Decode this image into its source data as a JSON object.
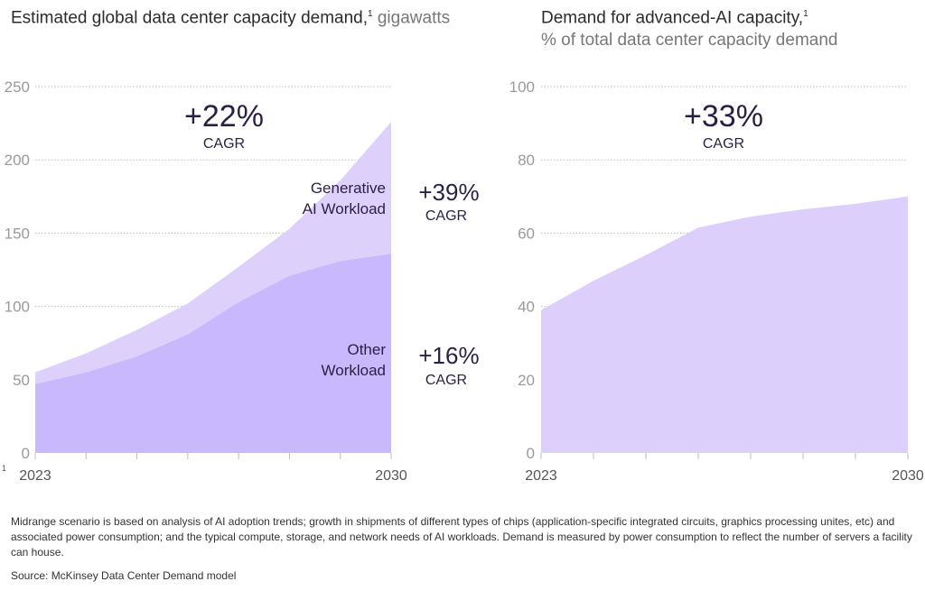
{
  "chart_data": [
    {
      "type": "area",
      "title": "Estimated global data center capacity demand,",
      "title_sup": "1",
      "unit": "gigawatts",
      "x": [
        2023,
        2024,
        2025,
        2026,
        2027,
        2028,
        2029,
        2030
      ],
      "x_tick_labels": [
        "2023",
        "2030"
      ],
      "ylim": [
        0,
        250
      ],
      "y_ticks": [
        0,
        50,
        100,
        150,
        200,
        250
      ],
      "grid": true,
      "stacked": true,
      "series": [
        {
          "name": "Other Workload",
          "label_lines": [
            "Other",
            "Workload"
          ],
          "values": [
            47,
            55,
            66,
            81,
            103,
            121,
            131,
            136
          ],
          "color": "#c9b8fb",
          "cagr": "+16%"
        },
        {
          "name": "Generative AI Workload",
          "label_lines": [
            "Generative",
            "AI Workload"
          ],
          "values": [
            8,
            13,
            18,
            21,
            24,
            32,
            55,
            90
          ],
          "color": "#ddd1fc",
          "cagr": "+39%"
        }
      ],
      "total_cagr": "+22%",
      "cagr_label": "CAGR",
      "footnote_marker": "1"
    },
    {
      "type": "area",
      "title": "Demand for advanced-AI capacity,",
      "title_sup": "1",
      "unit": "% of total data center capacity demand",
      "x": [
        2023,
        2024,
        2025,
        2026,
        2027,
        2028,
        2029,
        2030
      ],
      "x_tick_labels": [
        "2023",
        "2030"
      ],
      "ylim": [
        0,
        100
      ],
      "y_ticks": [
        0,
        20,
        40,
        60,
        80,
        100
      ],
      "grid": true,
      "series": [
        {
          "values": [
            39,
            47,
            54,
            61.5,
            64.5,
            66.5,
            68,
            70
          ],
          "color": "#dccffc"
        }
      ],
      "total_cagr": "+33%",
      "cagr_label": "CAGR"
    }
  ],
  "footnote": "Midrange scenario is based on analysis of AI adoption trends; growth in shipments of different types of chips (application-specific integrated circuits, graphics processing unites, etc) and associated power consumption; and the typical compute, storage, and network needs of AI workloads. Demand is measured by power consumption to reflect the number of servers a facility can house.",
  "source": "Source: McKinsey Data Center Demand model"
}
